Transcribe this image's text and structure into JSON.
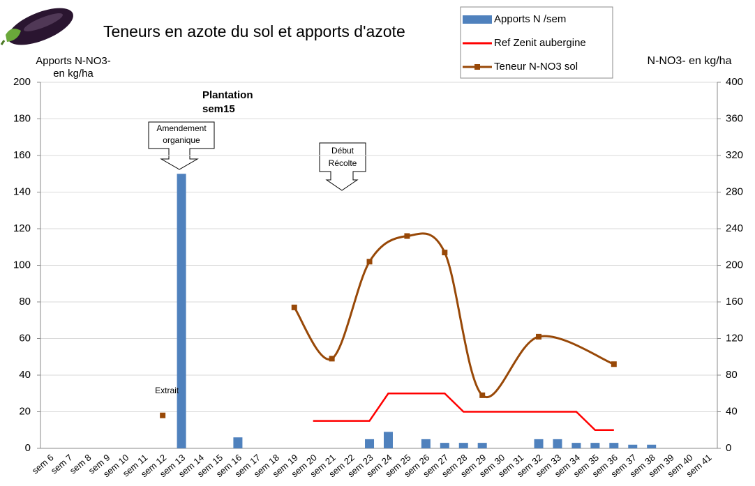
{
  "chart_data": {
    "type": "bar_line",
    "title": "Teneurs en azote du sol et apports d'azote",
    "y_label": [
      "Apports N-NO3-",
      "en kg/ha"
    ],
    "y2_label": "N-NO3- en kg/ha",
    "categories": [
      "sem 6",
      "sem 7",
      "sem 8",
      "sem 9",
      "sem 10",
      "sem 11",
      "sem 12",
      "sem 13",
      "sem 14",
      "sem 15",
      "sem 16",
      "sem 17",
      "sem 18",
      "sem 19",
      "sem 20",
      "sem 21",
      "sem 22",
      "sem 23",
      "sem 24",
      "sem 25",
      "sem 26",
      "sem 27",
      "sem 28",
      "sem 29",
      "sem 30",
      "sem 31",
      "sem 32",
      "sem 33",
      "sem 34",
      "sem 35",
      "sem 36",
      "sem 37",
      "sem 38",
      "sem 39",
      "sem 40",
      "sem 41"
    ],
    "series": [
      {
        "name": "Apports N /sem",
        "type": "bar",
        "color": "#4f81bd",
        "values": [
          null,
          null,
          null,
          null,
          null,
          null,
          null,
          150,
          null,
          null,
          6,
          null,
          null,
          null,
          null,
          null,
          null,
          5,
          9,
          null,
          5,
          3,
          3,
          3,
          null,
          null,
          5,
          5,
          3,
          3,
          3,
          2,
          2,
          null,
          null,
          null
        ]
      },
      {
        "name": "Ref Zenit aubergine",
        "type": "line",
        "axis": "y2",
        "color": "#ff0000",
        "values": [
          null,
          null,
          null,
          null,
          null,
          null,
          null,
          null,
          null,
          null,
          null,
          null,
          null,
          null,
          30,
          30,
          30,
          30,
          60,
          60,
          60,
          60,
          40,
          40,
          40,
          40,
          40,
          40,
          40,
          20,
          20,
          null,
          null,
          null,
          null,
          null
        ]
      },
      {
        "name": "Teneur N-NO3 sol",
        "type": "line",
        "axis": "y2",
        "color": "#984807",
        "smooth": true,
        "markers": true,
        "connect_gaps": true,
        "values": [
          null,
          null,
          null,
          null,
          null,
          null,
          null,
          null,
          null,
          null,
          null,
          null,
          null,
          154,
          null,
          98,
          null,
          204,
          null,
          232,
          null,
          214,
          null,
          58,
          null,
          null,
          122,
          null,
          null,
          null,
          92,
          null,
          null,
          null,
          null,
          null
        ]
      }
    ],
    "ylim": [
      0,
      200
    ],
    "yticks": [
      0,
      20,
      40,
      60,
      80,
      100,
      120,
      140,
      160,
      180,
      200
    ],
    "y2lim": [
      0,
      400
    ],
    "y2ticks": [
      0,
      40,
      80,
      120,
      160,
      200,
      240,
      280,
      320,
      360,
      400
    ],
    "grid": true,
    "legend": "top",
    "annotations": [
      {
        "text": [
          "Plantation",
          "sem15"
        ]
      },
      {
        "text": [
          "Amendement",
          "organique"
        ],
        "category": 7
      },
      {
        "text": [
          "Début",
          "Récolte"
        ],
        "category": 15
      },
      {
        "text": "Extrait",
        "category": 6,
        "value": 36,
        "axis": "y2",
        "color": "#984807"
      }
    ]
  }
}
